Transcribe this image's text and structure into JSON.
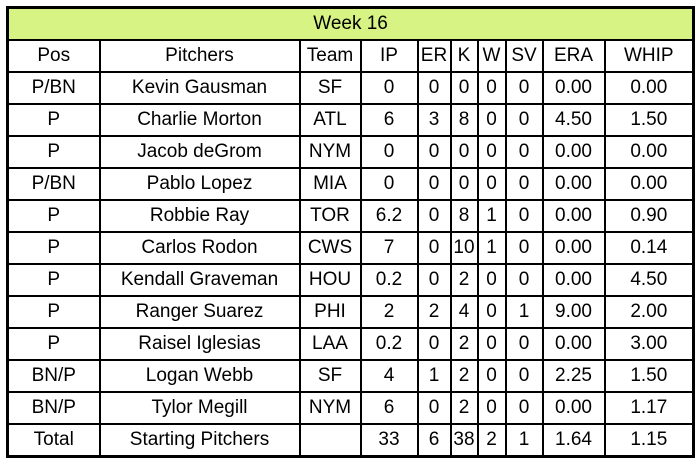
{
  "title": "Week 16",
  "colors": {
    "banner_bg": "#d6f384",
    "grid_border": "#000000",
    "cell_bg": "#ffffff",
    "text": "#000000"
  },
  "table": {
    "columns": [
      "Pos",
      "Pitchers",
      "Team",
      "IP",
      "ER",
      "K",
      "W",
      "SV",
      "ERA",
      "WHIP"
    ],
    "rows": [
      [
        "P/BN",
        "Kevin Gausman",
        "SF",
        "0",
        "0",
        "0",
        "0",
        "0",
        "0.00",
        "0.00"
      ],
      [
        "P",
        "Charlie Morton",
        "ATL",
        "6",
        "3",
        "8",
        "0",
        "0",
        "4.50",
        "1.50"
      ],
      [
        "P",
        "Jacob deGrom",
        "NYM",
        "0",
        "0",
        "0",
        "0",
        "0",
        "0.00",
        "0.00"
      ],
      [
        "P/BN",
        "Pablo Lopez",
        "MIA",
        "0",
        "0",
        "0",
        "0",
        "0",
        "0.00",
        "0.00"
      ],
      [
        "P",
        "Robbie Ray",
        "TOR",
        "6.2",
        "0",
        "8",
        "1",
        "0",
        "0.00",
        "0.90"
      ],
      [
        "P",
        "Carlos Rodon",
        "CWS",
        "7",
        "0",
        "10",
        "1",
        "0",
        "0.00",
        "0.14"
      ],
      [
        "P",
        "Kendall Graveman",
        "HOU",
        "0.2",
        "0",
        "2",
        "0",
        "0",
        "0.00",
        "4.50"
      ],
      [
        "P",
        "Ranger Suarez",
        "PHI",
        "2",
        "2",
        "4",
        "0",
        "1",
        "9.00",
        "2.00"
      ],
      [
        "P",
        "Raisel Iglesias",
        "LAA",
        "0.2",
        "0",
        "2",
        "0",
        "0",
        "0.00",
        "3.00"
      ],
      [
        "BN/P",
        "Logan Webb",
        "SF",
        "4",
        "1",
        "2",
        "0",
        "0",
        "2.25",
        "1.50"
      ],
      [
        "BN/P",
        "Tylor Megill",
        "NYM",
        "6",
        "0",
        "2",
        "0",
        "0",
        "0.00",
        "1.17"
      ]
    ],
    "total_row": [
      "Total",
      "Starting Pitchers",
      "",
      "33",
      "6",
      "38",
      "2",
      "1",
      "1.64",
      "1.15"
    ]
  }
}
